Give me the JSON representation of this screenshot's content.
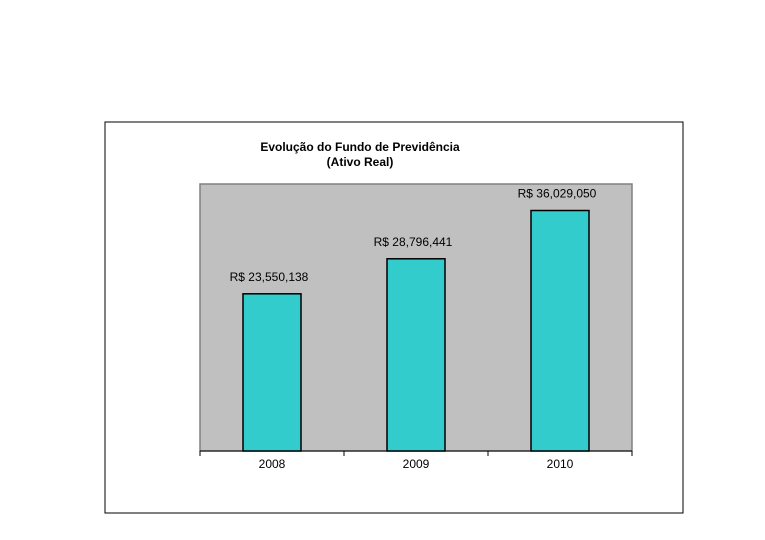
{
  "chart_data": {
    "type": "bar",
    "title": "Evolução do Fundo de Previdência",
    "subtitle": "(Ativo Real)",
    "categories": [
      "2008",
      "2009",
      "2010"
    ],
    "values": [
      23550138,
      28796441,
      36029050
    ],
    "value_labels": [
      "R$ 23,550,138",
      "R$ 28,796,441",
      "R$ 36,029,050"
    ],
    "color": "#33cccc",
    "ylim": [
      0,
      40000000
    ]
  }
}
